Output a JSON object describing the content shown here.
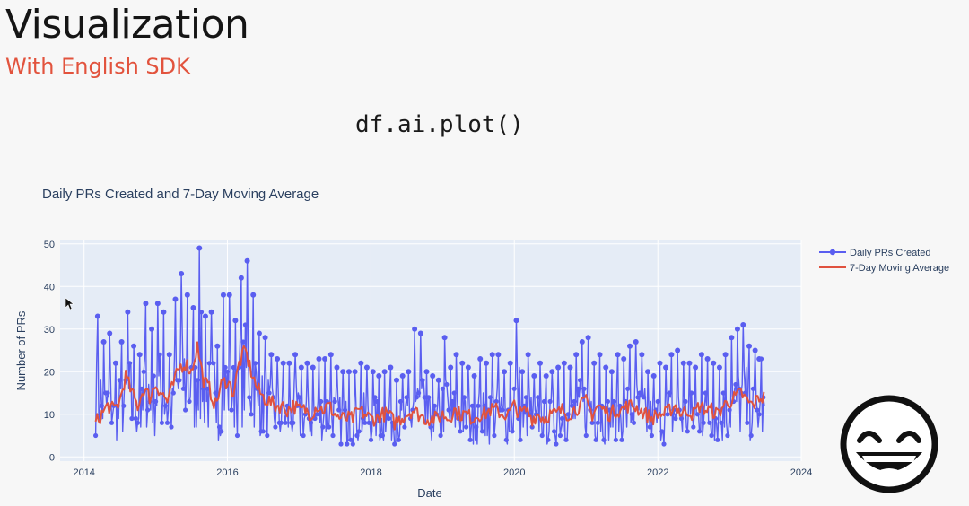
{
  "slide": {
    "title": "Visualization",
    "subtitle": "With English SDK",
    "code": "df.ai.plot()"
  },
  "colors": {
    "subtitle": "#e2533d",
    "series_daily": "#5a5ef0",
    "series_avg": "#e0523f",
    "plot_background": "#e5ecf6"
  },
  "emoji": {
    "icon": "laughing-face-icon"
  },
  "chart_data": {
    "type": "line",
    "title": "Daily PRs Created and 7-Day Moving Average",
    "xlabel": "Date",
    "ylabel": "Number of PRs",
    "xlim": [
      "2013-09-01",
      "2024-01-01"
    ],
    "ylim": [
      -1,
      51
    ],
    "x_ticks": [
      "2014",
      "2016",
      "2018",
      "2020",
      "2022",
      "2024"
    ],
    "y_ticks": [
      0,
      10,
      20,
      30,
      40,
      50
    ],
    "grid": true,
    "legend": "top-right",
    "series": [
      {
        "name": "Daily PRs Created",
        "marker": "circle",
        "x": [
          "2014-03-01",
          "2014-04-01",
          "2014-05-01",
          "2014-06-01",
          "2014-07-01",
          "2014-08-01",
          "2014-09-01",
          "2014-10-01",
          "2014-11-01",
          "2014-12-01",
          "2015-01-01",
          "2015-02-01",
          "2015-03-01",
          "2015-04-01",
          "2015-05-01",
          "2015-06-01",
          "2015-07-01",
          "2015-08-01",
          "2015-09-01",
          "2015-10-01",
          "2015-11-01",
          "2015-12-01",
          "2016-01-01",
          "2016-02-01",
          "2016-03-01",
          "2016-04-01",
          "2016-05-01",
          "2016-06-01",
          "2016-07-01",
          "2016-08-01",
          "2016-09-01",
          "2016-10-01",
          "2016-11-01",
          "2016-12-01",
          "2017-01-01",
          "2017-02-01",
          "2017-03-01",
          "2017-04-01",
          "2017-05-01",
          "2017-06-01",
          "2017-07-01",
          "2017-08-01",
          "2017-09-01",
          "2017-10-01",
          "2017-11-01",
          "2017-12-01",
          "2018-01-01",
          "2018-02-01",
          "2018-03-01",
          "2018-04-01",
          "2018-05-01",
          "2018-06-01",
          "2018-07-01",
          "2018-08-01",
          "2018-09-01",
          "2018-10-01",
          "2018-11-01",
          "2018-12-01",
          "2019-01-01",
          "2019-02-01",
          "2019-03-01",
          "2019-04-01",
          "2019-05-01",
          "2019-06-01",
          "2019-07-01",
          "2019-08-01",
          "2019-09-01",
          "2019-10-01",
          "2019-11-01",
          "2019-12-01",
          "2020-01-01",
          "2020-02-01",
          "2020-03-01",
          "2020-04-01",
          "2020-05-01",
          "2020-06-01",
          "2020-07-01",
          "2020-08-01",
          "2020-09-01",
          "2020-10-01",
          "2020-11-01",
          "2020-12-01",
          "2021-01-01",
          "2021-02-01",
          "2021-03-01",
          "2021-04-01",
          "2021-05-01",
          "2021-06-01",
          "2021-07-01",
          "2021-08-01",
          "2021-09-01",
          "2021-10-01",
          "2021-11-01",
          "2021-12-01",
          "2022-01-01",
          "2022-02-01",
          "2022-03-01",
          "2022-04-01",
          "2022-05-01",
          "2022-06-01",
          "2022-07-01",
          "2022-08-01",
          "2022-09-01",
          "2022-10-01",
          "2022-11-01",
          "2022-12-01",
          "2023-01-01",
          "2023-02-01",
          "2023-03-01",
          "2023-04-01",
          "2023-05-01",
          "2023-06-01"
        ],
        "values": [
          33,
          27,
          29,
          22,
          27,
          34,
          26,
          24,
          36,
          30,
          36,
          34,
          24,
          37,
          43,
          38,
          35,
          49,
          33,
          34,
          26,
          38,
          38,
          32,
          42,
          46,
          38,
          29,
          28,
          24,
          23,
          22,
          22,
          24,
          21,
          22,
          21,
          23,
          23,
          24,
          21,
          20,
          20,
          20,
          22,
          21,
          20,
          19,
          20,
          21,
          18,
          19,
          20,
          30,
          29,
          20,
          19,
          18,
          28,
          21,
          24,
          22,
          21,
          19,
          23,
          22,
          24,
          24,
          20,
          22,
          32,
          20,
          24,
          19,
          22,
          19,
          20,
          21,
          22,
          21,
          24,
          27,
          28,
          22,
          24,
          21,
          20,
          24,
          23,
          26,
          27,
          24,
          20,
          19,
          22,
          21,
          24,
          25,
          22,
          22,
          21,
          24,
          23,
          22,
          21,
          24,
          28,
          30,
          31,
          26,
          25,
          23
        ]
      },
      {
        "name": "7-Day Moving Average",
        "x": [
          "2014-03-01",
          "2014-04-01",
          "2014-05-01",
          "2014-06-01",
          "2014-07-01",
          "2014-08-01",
          "2014-09-01",
          "2014-10-01",
          "2014-11-01",
          "2014-12-01",
          "2015-01-01",
          "2015-02-01",
          "2015-03-01",
          "2015-04-01",
          "2015-05-01",
          "2015-06-01",
          "2015-07-01",
          "2015-08-01",
          "2015-09-01",
          "2015-10-01",
          "2015-11-01",
          "2015-12-01",
          "2016-01-01",
          "2016-02-01",
          "2016-03-01",
          "2016-04-01",
          "2016-05-01",
          "2016-06-01",
          "2016-07-01",
          "2016-08-01",
          "2016-09-01",
          "2016-10-01",
          "2016-11-01",
          "2016-12-01",
          "2017-01-01",
          "2017-02-01",
          "2017-03-01",
          "2017-04-01",
          "2017-05-01",
          "2017-06-01",
          "2017-07-01",
          "2017-08-01",
          "2017-09-01",
          "2017-10-01",
          "2017-11-01",
          "2017-12-01",
          "2018-01-01",
          "2018-02-01",
          "2018-03-01",
          "2018-04-01",
          "2018-05-01",
          "2018-06-01",
          "2018-07-01",
          "2018-08-01",
          "2018-09-01",
          "2018-10-01",
          "2018-11-01",
          "2018-12-01",
          "2019-01-01",
          "2019-02-01",
          "2019-03-01",
          "2019-04-01",
          "2019-05-01",
          "2019-06-01",
          "2019-07-01",
          "2019-08-01",
          "2019-09-01",
          "2019-10-01",
          "2019-11-01",
          "2019-12-01",
          "2020-01-01",
          "2020-02-01",
          "2020-03-01",
          "2020-04-01",
          "2020-05-01",
          "2020-06-01",
          "2020-07-01",
          "2020-08-01",
          "2020-09-01",
          "2020-10-01",
          "2020-11-01",
          "2020-12-01",
          "2021-01-01",
          "2021-02-01",
          "2021-03-01",
          "2021-04-01",
          "2021-05-01",
          "2021-06-01",
          "2021-07-01",
          "2021-08-01",
          "2021-09-01",
          "2021-10-01",
          "2021-11-01",
          "2021-12-01",
          "2022-01-01",
          "2022-02-01",
          "2022-03-01",
          "2022-04-01",
          "2022-05-01",
          "2022-06-01",
          "2022-07-01",
          "2022-08-01",
          "2022-09-01",
          "2022-10-01",
          "2022-11-01",
          "2022-12-01",
          "2023-01-01",
          "2023-02-01",
          "2023-03-01",
          "2023-04-01",
          "2023-05-01",
          "2023-06-01"
        ],
        "values": [
          8,
          10,
          12,
          11,
          13,
          19,
          15,
          12,
          16,
          14,
          17,
          15,
          13,
          17,
          21,
          22,
          20,
          26,
          18,
          16,
          12,
          17,
          18,
          15,
          22,
          25,
          20,
          16,
          14,
          13,
          12,
          12,
          11,
          12,
          11,
          11,
          10,
          12,
          11,
          12,
          10,
          9,
          9,
          9,
          11,
          10,
          9,
          9,
          10,
          10,
          8,
          9,
          10,
          11,
          10,
          9,
          9,
          9,
          10,
          9,
          11,
          10,
          10,
          9,
          10,
          10,
          11,
          11,
          10,
          10,
          12,
          10,
          11,
          9,
          10,
          9,
          10,
          10,
          11,
          10,
          11,
          12,
          13,
          10,
          12,
          11,
          10,
          11,
          11,
          12,
          12,
          11,
          10,
          9,
          10,
          10,
          11,
          12,
          10,
          11,
          10,
          12,
          11,
          11,
          10,
          12,
          13,
          14,
          15,
          13,
          12,
          14
        ]
      }
    ]
  }
}
